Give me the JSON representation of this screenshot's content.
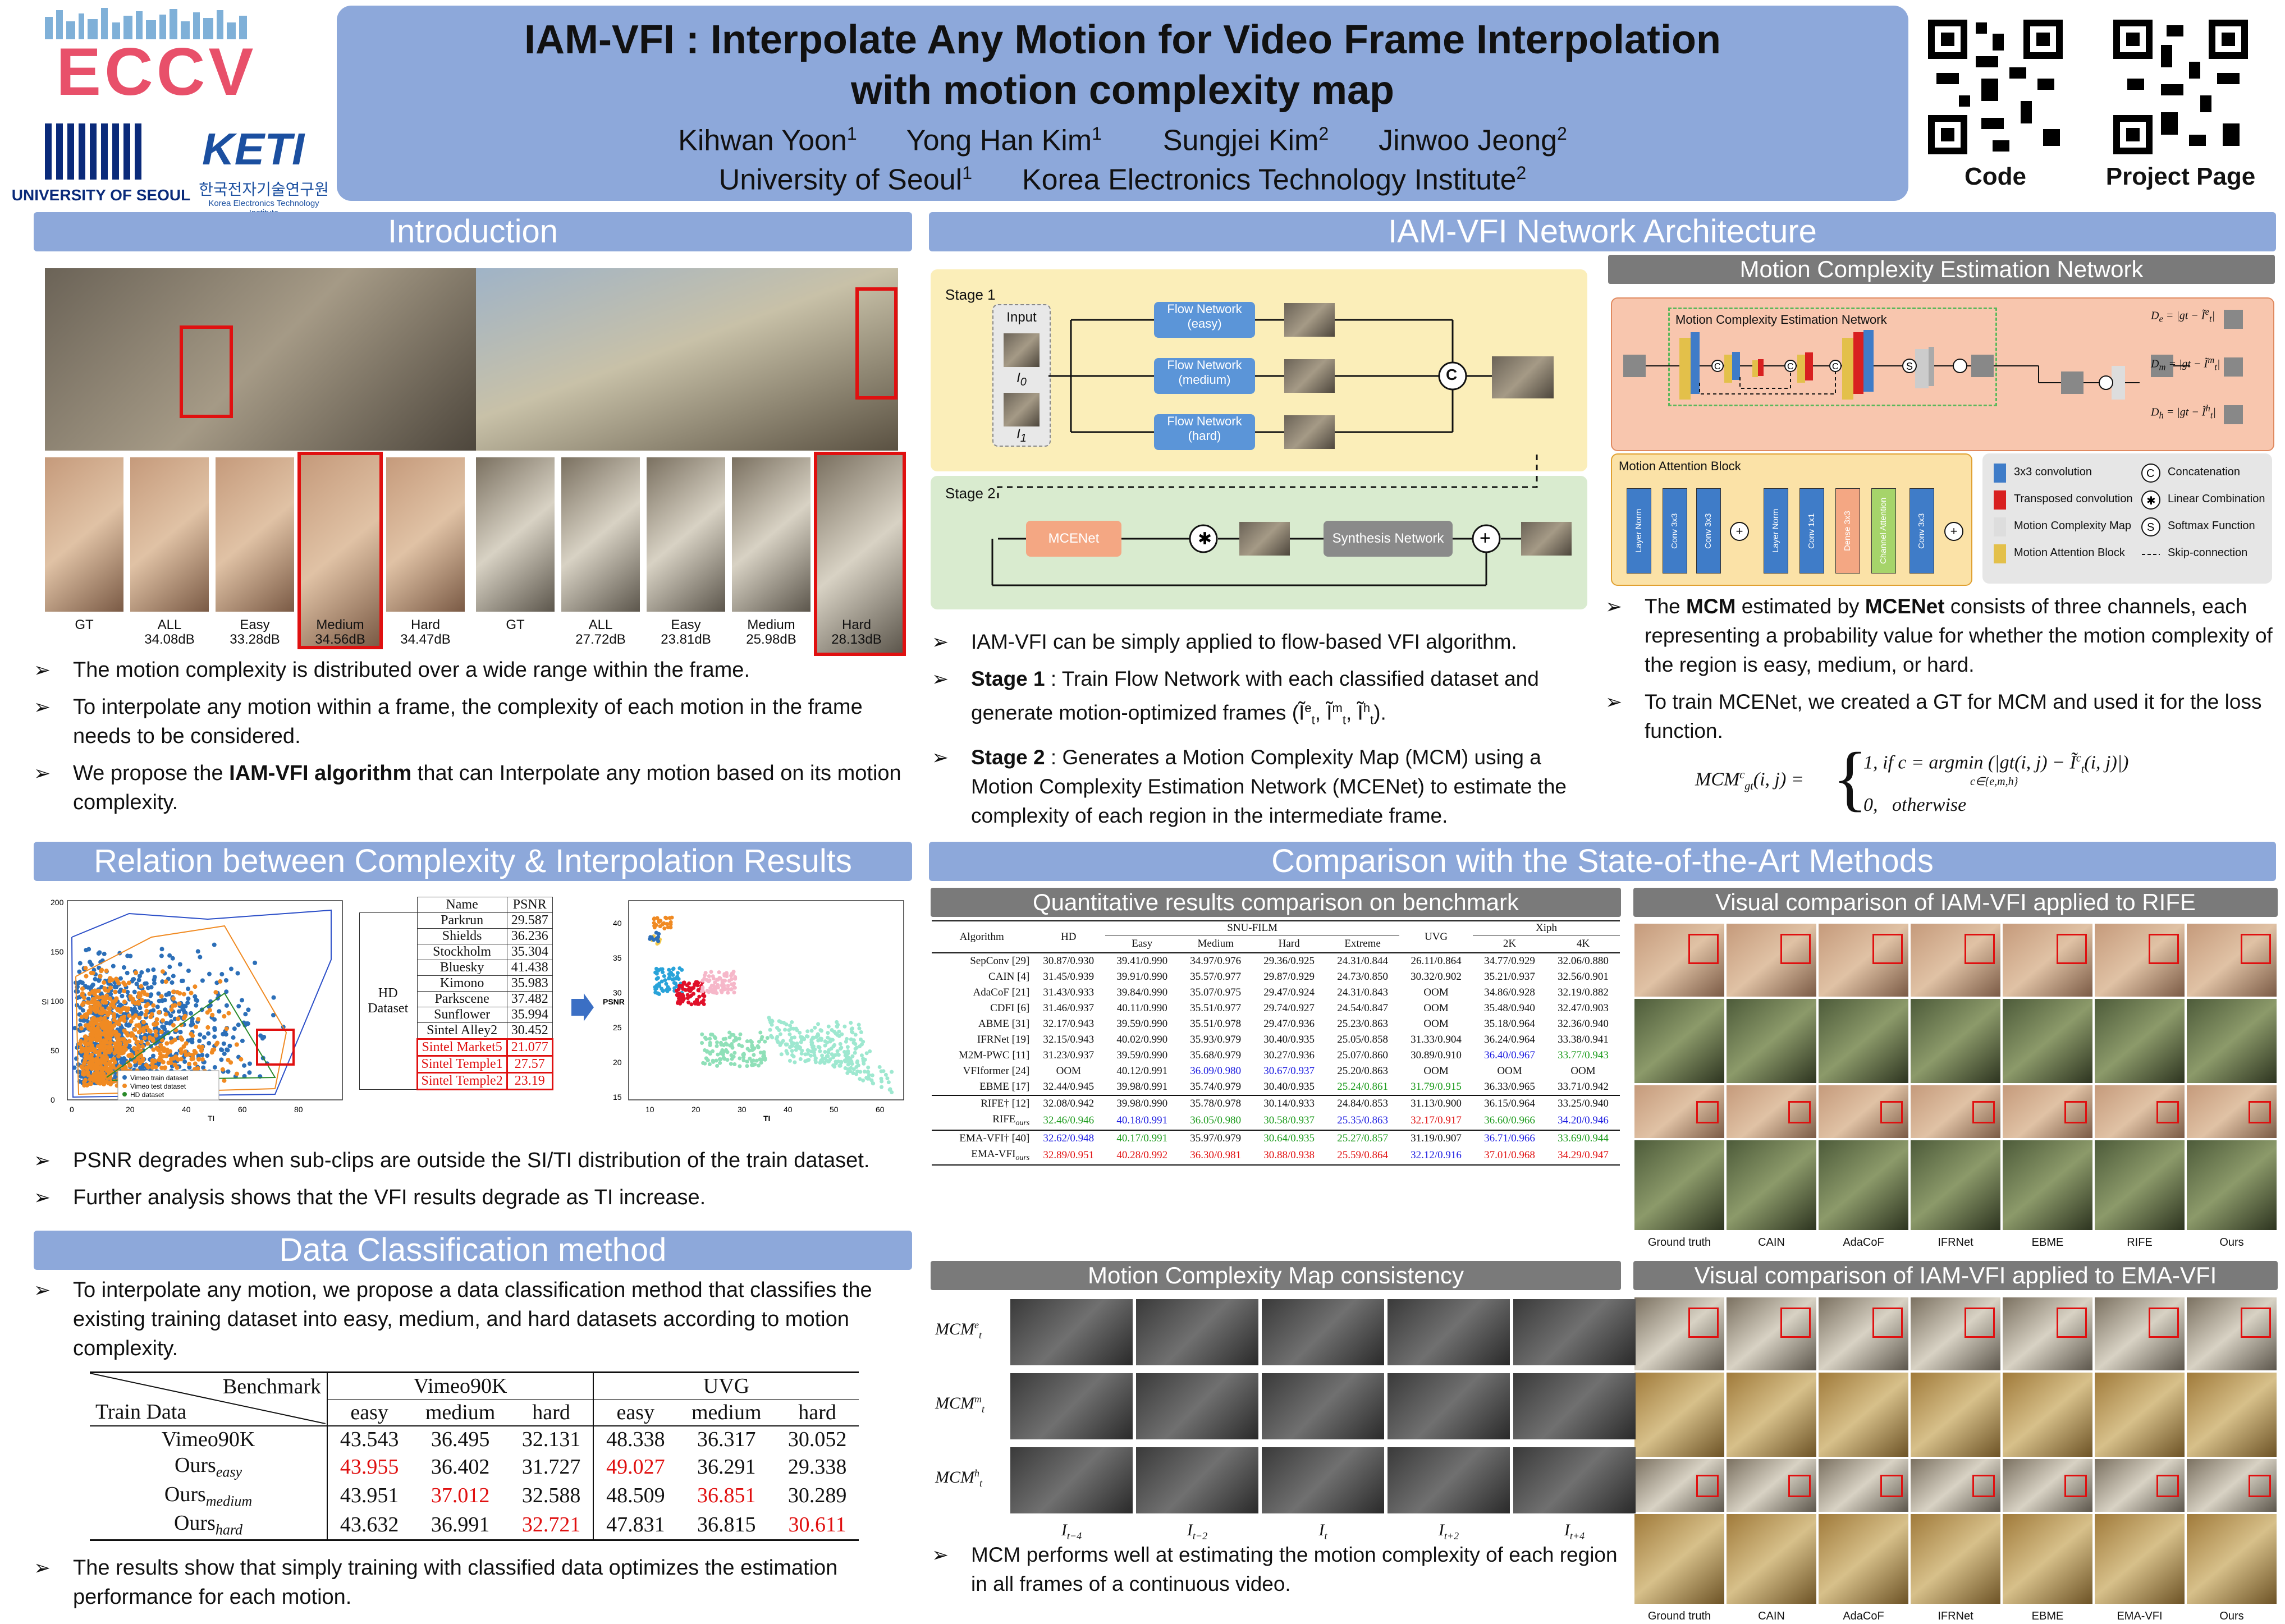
{
  "header": {
    "title_line1": "IAM-VFI : Interpolate Any Motion for Video Frame Interpolation",
    "title_line2": "with motion complexity map",
    "authors": [
      "Kihwan Yoon",
      "Yong Han Kim",
      "Sungjei Kim",
      "Jinwoo Jeong"
    ],
    "author_sups": [
      "1",
      "1",
      "2",
      "2"
    ],
    "affil1": "University of Seoul",
    "affil1_sup": "1",
    "affil2": "Korea Electronics Technology Institute",
    "affil2_sup": "2",
    "logo_eccv": "ECCV",
    "logo_uos": "UNIVERSITY OF SEOUL",
    "logo_keti": "KETI",
    "logo_keti_sub": "한국전자기술연구원",
    "logo_keti_sub2": "Korea Electronics Technology Institute",
    "qr_code_label": "Code",
    "qr_project_label": "Project Page"
  },
  "intro": {
    "title": "Introduction",
    "labels_left": [
      "GT",
      "ALL",
      "Easy",
      "Medium",
      "Hard"
    ],
    "vals_left": [
      "",
      "34.08dB",
      "33.28dB",
      "34.56dB",
      "34.47dB"
    ],
    "labels_right": [
      "GT",
      "ALL",
      "Easy",
      "Medium",
      "Hard"
    ],
    "vals_right": [
      "",
      "27.72dB",
      "23.81dB",
      "25.98dB",
      "28.13dB"
    ],
    "bullets": [
      "The motion complexity is distributed over a wide range within the frame.",
      "To interpolate any motion within a frame, the complexity of each motion in the frame needs to be considered."
    ],
    "b3_pre": "We propose the ",
    "b3_bold": "IAM-VFI algorithm",
    "b3_post": " that can Interpolate any motion based on its motion complexity."
  },
  "relation": {
    "title": "Relation between Complexity & Interpolation Results",
    "scatter": {
      "xlabel": "TI",
      "ylabel": "SI",
      "yticks": [
        "200",
        "150",
        "100",
        "50",
        "0"
      ],
      "xticks": [
        "0",
        "20",
        "40",
        "60",
        "80"
      ],
      "legend": [
        "Vimeo train dataset",
        "Vimeo test dataset",
        "HD dataset"
      ]
    },
    "table_header": [
      "Name",
      "PSNR"
    ],
    "hd_label": "HD Dataset",
    "rows": [
      [
        "Parkrun",
        "29.587"
      ],
      [
        "Shields",
        "36.236"
      ],
      [
        "Stockholm",
        "35.304"
      ],
      [
        "Bluesky",
        "41.438"
      ],
      [
        "Kimono",
        "35.983"
      ],
      [
        "Parkscene",
        "37.482"
      ],
      [
        "Sunflower",
        "35.994"
      ],
      [
        "Sintel Alley2",
        "30.452"
      ],
      [
        "Sintel Market5",
        "21.077"
      ],
      [
        "Sintel Temple1",
        "27.57"
      ],
      [
        "Sintel Temple2",
        "23.19"
      ]
    ],
    "psnr_plot": {
      "xlabel": "TI",
      "ylabel": "PSNR",
      "yticks": [
        "40",
        "35",
        "30",
        "25",
        "20",
        "15"
      ],
      "xticks": [
        "10",
        "20",
        "30",
        "40",
        "50",
        "60"
      ]
    },
    "bullets": [
      "PSNR degrades when sub-clips are outside the SI/TI distribution of the train dataset.",
      "Further analysis shows that the VFI results degrade as TI increase."
    ]
  },
  "dataclass": {
    "title": "Data Classification method",
    "bullet1": "To interpolate any motion, we propose a data classification method that classifies the existing training dataset into easy, medium, and hard datasets according to motion complexity.",
    "corner_top": "Benchmark",
    "corner_bottom": "Train Data",
    "groups": [
      "Vimeo90K",
      "UVG"
    ],
    "cols": [
      "easy",
      "medium",
      "hard",
      "easy",
      "medium",
      "hard"
    ],
    "rows": [
      {
        "name": "Vimeo90K",
        "sub": "",
        "v": [
          "43.543",
          "36.495",
          "32.131",
          "48.338",
          "36.317",
          "30.052"
        ]
      },
      {
        "name": "Ours",
        "sub": "easy",
        "v": [
          "43.955",
          "36.402",
          "31.727",
          "49.027",
          "36.291",
          "29.338"
        ]
      },
      {
        "name": "Ours",
        "sub": "medium",
        "v": [
          "43.951",
          "37.012",
          "32.588",
          "48.509",
          "36.851",
          "30.289"
        ]
      },
      {
        "name": "Ours",
        "sub": "hard",
        "v": [
          "43.632",
          "36.991",
          "32.721",
          "47.831",
          "36.815",
          "30.611"
        ]
      }
    ],
    "bullet2": "The results show that simply training with classified data optimizes the estimation performance for each motion."
  },
  "arch": {
    "title": "IAM-VFI Network Architecture",
    "stage1": "Stage 1",
    "stage2": "Stage 2",
    "input": "Input",
    "i0": "I",
    "i0s": "0",
    "i1": "I",
    "i1s": "1",
    "flow_easy": [
      "Flow Network",
      "(easy)"
    ],
    "flow_med": [
      "Flow Network",
      "(medium)"
    ],
    "flow_hard": [
      "Flow Network",
      "(hard)"
    ],
    "concat": "C",
    "mcenet": "MCENet",
    "synth": "Synthesis Network",
    "bullet1": "IAM-VFI can be simply applied to flow-based VFI algorithm.",
    "b2_bold": "Stage 1",
    "b2_text": " : Train Flow Network with each classified dataset and generate motion-optimized frames (Ĩ",
    "b2_tail": ").",
    "b3_bold": "Stage 2",
    "b3_text": " : Generates a Motion Complexity Map (MCM) using a Motion Complexity Estimation Network (MCENet) to estimate the complexity of each region in the intermediate frame."
  },
  "mcen": {
    "title": "Motion Complexity Estimation Network",
    "inner": "Motion Complexity Estimation Network",
    "mab": "Motion Attention Block",
    "mab_layers": [
      "Layer Norm",
      "Conv 3x3",
      "Conv 3x3",
      "Layer Norm",
      "Conv 1x1",
      "Dense 3x3",
      "Channel Attention",
      "Conv 3x3"
    ],
    "legend": [
      "3x3 convolution",
      "Transposed convolution",
      "Motion Complexity Map",
      "Motion Attention Block",
      "Concatenation",
      "Linear Combination",
      "Softmax Function",
      "Skip-connection"
    ],
    "d_labels": [
      "D",
      "D",
      "D"
    ],
    "bullet1_pre": "The ",
    "bullet1_b1": "MCM",
    "bullet1_mid": " estimated by ",
    "bullet1_b2": "MCENet",
    "bullet1_post": " consists of three channels, each representing a probability value for whether the motion complexity of the region is easy, medium, or hard.",
    "bullet2": "To train MCENet, we created a GT for MCM and used it for the loss function.",
    "eq_lhs": "MCM",
    "eq_case1": "1,   if c = argmin (|gt(i, j) − Ĩ",
    "eq_case2": "0,   otherwise",
    "eq_sub": "c∈{e,m,h}"
  },
  "comparison": {
    "title": "Comparison with the State-of-the-Art Methods",
    "quant_title": "Quantitative results comparison on benchmark",
    "header": [
      "Algorithm",
      "HD",
      "SNU-FILM",
      "UVG",
      "Xiph"
    ],
    "subheader": [
      "Easy",
      "Medium",
      "Hard",
      "Extreme",
      "2K",
      "4K"
    ],
    "rows": [
      [
        "SepConv [29]",
        "30.87/0.930",
        "39.41/0.990",
        "34.97/0.976",
        "29.36/0.925",
        "24.31/0.844",
        "26.11/0.864",
        "34.77/0.929",
        "32.06/0.880"
      ],
      [
        "CAIN [4]",
        "31.45/0.939",
        "39.91/0.990",
        "35.57/0.977",
        "29.87/0.929",
        "24.73/0.850",
        "30.32/0.902",
        "35.21/0.937",
        "32.56/0.901"
      ],
      [
        "AdaCoF [21]",
        "31.43/0.933",
        "39.84/0.990",
        "35.07/0.975",
        "29.47/0.924",
        "24.31/0.843",
        "OOM",
        "34.86/0.928",
        "32.19/0.882"
      ],
      [
        "CDFI [6]",
        "31.46/0.937",
        "40.11/0.990",
        "35.51/0.977",
        "29.74/0.927",
        "24.54/0.847",
        "OOM",
        "35.48/0.940",
        "32.47/0.903"
      ],
      [
        "ABME [31]",
        "32.17/0.943",
        "39.59/0.990",
        "35.51/0.978",
        "29.47/0.936",
        "25.23/0.863",
        "OOM",
        "35.18/0.964",
        "32.36/0.940"
      ],
      [
        "IFRNet [19]",
        "32.15/0.943",
        "40.02/0.990",
        "35.93/0.979",
        "30.40/0.935",
        "25.05/0.858",
        "31.33/0.904",
        "36.24/0.964",
        "33.38/0.941"
      ],
      [
        "M2M-PWC [11]",
        "31.23/0.937",
        "39.59/0.990",
        "35.68/0.979",
        "30.27/0.936",
        "25.07/0.860",
        "30.89/0.910",
        "36.40/0.967",
        "33.77/0.943"
      ],
      [
        "VFIformer [24]",
        "OOM",
        "40.12/0.991",
        "36.09/0.980",
        "30.67/0.937",
        "25.20/0.863",
        "OOM",
        "OOM",
        "OOM"
      ],
      [
        "EBME [17]",
        "32.44/0.945",
        "39.98/0.991",
        "35.74/0.979",
        "30.40/0.935",
        "25.24/0.861",
        "31.79/0.915",
        "36.33/0.965",
        "33.71/0.942"
      ],
      [
        "RIFE† [12]",
        "32.08/0.942",
        "39.98/0.990",
        "35.78/0.978",
        "30.14/0.933",
        "24.84/0.853",
        "31.13/0.900",
        "36.15/0.964",
        "33.25/0.940"
      ],
      [
        "RIFE_ours",
        "32.46/0.946",
        "40.18/0.991",
        "36.05/0.980",
        "30.58/0.937",
        "25.35/0.863",
        "32.17/0.917",
        "36.60/0.966",
        "34.20/0.946"
      ],
      [
        "EMA-VFI† [40]",
        "32.62/0.948",
        "40.17/0.991",
        "35.97/0.979",
        "30.64/0.935",
        "25.27/0.857",
        "31.19/0.907",
        "36.71/0.966",
        "33.69/0.944"
      ],
      [
        "EMA-VFI_ours",
        "32.89/0.951",
        "40.28/0.992",
        "36.30/0.981",
        "30.88/0.938",
        "25.59/0.864",
        "32.12/0.916",
        "37.01/0.968",
        "34.29/0.947"
      ]
    ],
    "colors": [
      [
        "",
        "",
        "",
        "",
        "",
        "",
        "",
        "",
        ""
      ],
      [
        "",
        "",
        "",
        "",
        "",
        "",
        "",
        "",
        ""
      ],
      [
        "",
        "",
        "",
        "",
        "",
        "",
        "",
        "",
        ""
      ],
      [
        "",
        "",
        "",
        "",
        "",
        "",
        "",
        "",
        ""
      ],
      [
        "",
        "",
        "",
        "",
        "",
        "",
        "",
        "",
        ""
      ],
      [
        "",
        "",
        "",
        "",
        "",
        "",
        "",
        "",
        ""
      ],
      [
        "",
        "",
        "",
        "",
        "",
        "",
        "",
        "blue",
        "green"
      ],
      [
        "",
        "",
        "",
        "blue",
        "blue",
        "",
        "",
        "",
        ""
      ],
      [
        "",
        "",
        "",
        "",
        "",
        "green",
        "green",
        "",
        ""
      ],
      [
        "",
        "",
        "",
        "",
        "",
        "",
        "",
        "",
        ""
      ],
      [
        "",
        "green",
        "blue",
        "green",
        "green",
        "blue",
        "red",
        "green",
        "blue"
      ],
      [
        "",
        "blue",
        "green",
        "",
        "green",
        "green",
        "",
        "blue",
        "green"
      ],
      [
        "",
        "red",
        "red",
        "red",
        "red",
        "red",
        "blue",
        "red",
        "red"
      ]
    ],
    "rife_title": "Visual comparison of IAM-VFI applied to RIFE",
    "rife_caps": [
      "Ground truth",
      "CAIN",
      "AdaCoF",
      "IFRNet",
      "EBME",
      "RIFE",
      "Ours"
    ],
    "mcm_title": "Motion Complexity Map consistency",
    "mcm_rows": [
      "MCM",
      "MCM",
      "MCM"
    ],
    "mcm_sup": [
      "e",
      "m",
      "h"
    ],
    "mcm_cols": [
      "I",
      "I",
      "I",
      "I",
      "I"
    ],
    "mcm_col_sub": [
      "t−4",
      "t−2",
      "t",
      "t+2",
      "t+4"
    ],
    "mcm_bullet": "MCM performs well at estimating the motion complexity of each region in all frames of a continuous video.",
    "ema_title": "Visual comparison of IAM-VFI applied to EMA-VFI",
    "ema_caps": [
      "Ground truth",
      "CAIN",
      "AdaCoF",
      "IFRNet",
      "EBME",
      "EMA-VFI",
      "Ours"
    ]
  },
  "colors": {
    "band": "#8da8da",
    "red": "#e01010",
    "blue": "#1a1ae0",
    "green": "#1a9a1a"
  }
}
